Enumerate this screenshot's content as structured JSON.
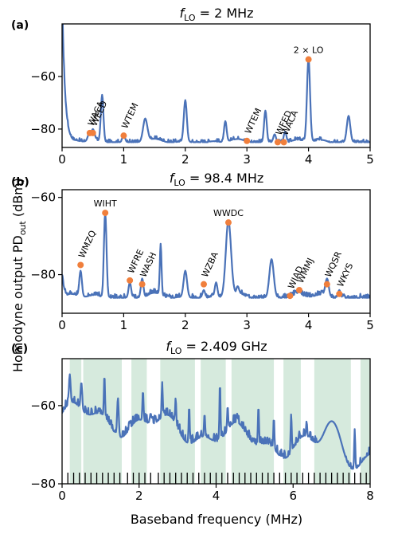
{
  "figure": {
    "ylabel": "Homodyne output PD",
    "ylabel_sub": "out",
    "ylabel_unit": " (dBm)",
    "xlabel": "Baseband frequency (MHz)"
  },
  "colors": {
    "line": "#4a72b8",
    "marker": "#f07f3c",
    "band": "#d6eadd"
  },
  "chart_data": [
    {
      "panel": "(a)",
      "title_italic": "f",
      "title_sub": "LO",
      "title_rest": " = 2 MHz",
      "type": "line",
      "xlim": [
        0,
        5
      ],
      "ylim": [
        -87,
        -40
      ],
      "xticks": [
        0,
        1,
        2,
        3,
        4,
        5
      ],
      "yticks": [
        -80,
        -60
      ],
      "peaks": [
        {
          "x": 0.45,
          "y": -81,
          "w": 0.04
        },
        {
          "x": 0.5,
          "y": -80,
          "w": 0.04
        },
        {
          "x": 0.65,
          "y": -67,
          "w": 0.03
        },
        {
          "x": 1.0,
          "y": -82,
          "w": 0.03
        },
        {
          "x": 1.35,
          "y": -76,
          "w": 0.05
        },
        {
          "x": 2.0,
          "y": -69,
          "w": 0.035
        },
        {
          "x": 2.65,
          "y": -77,
          "w": 0.03
        },
        {
          "x": 3.0,
          "y": -84,
          "w": 0.03
        },
        {
          "x": 3.3,
          "y": -73,
          "w": 0.03
        },
        {
          "x": 3.45,
          "y": -82,
          "w": 0.03
        },
        {
          "x": 3.62,
          "y": -81,
          "w": 0.03
        },
        {
          "x": 4.0,
          "y": -53,
          "w": 0.035
        },
        {
          "x": 4.65,
          "y": -75,
          "w": 0.04
        }
      ],
      "left_rise": {
        "y0": -28,
        "decay": 0.045
      },
      "floor": -85,
      "markers": [
        {
          "x": 0.45,
          "y": -81.5,
          "label": "WACA",
          "rot": -65
        },
        {
          "x": 0.5,
          "y": -81.5,
          "label": "WEED",
          "rot": -65
        },
        {
          "x": 1.0,
          "y": -82.5,
          "label": "WTEM",
          "rot": -65
        },
        {
          "x": 3.0,
          "y": -84.5,
          "label": "WTEM",
          "rot": -65
        },
        {
          "x": 3.5,
          "y": -85,
          "label": "WFED",
          "rot": -65
        },
        {
          "x": 3.6,
          "y": -85,
          "label": "WACA",
          "rot": -65
        },
        {
          "x": 4.0,
          "y": -53.5,
          "label": "2 × LO",
          "rot": 0
        }
      ]
    },
    {
      "panel": "(b)",
      "title_italic": "f",
      "title_sub": "LO",
      "title_rest": " = 98.4 MHz",
      "type": "line",
      "xlim": [
        0,
        5
      ],
      "ylim": [
        -90,
        -58
      ],
      "xticks": [
        0,
        1,
        2,
        3,
        4,
        5
      ],
      "yticks": [
        -80,
        -60
      ],
      "peaks": [
        {
          "x": 0.3,
          "y": -79,
          "w": 0.03
        },
        {
          "x": 0.7,
          "y": -64,
          "w": 0.03
        },
        {
          "x": 1.1,
          "y": -82,
          "w": 0.03
        },
        {
          "x": 1.3,
          "y": -81,
          "w": 0.03
        },
        {
          "x": 1.6,
          "y": -72,
          "w": 0.02
        },
        {
          "x": 2.0,
          "y": -79,
          "w": 0.04
        },
        {
          "x": 2.3,
          "y": -84,
          "w": 0.03
        },
        {
          "x": 2.5,
          "y": -82,
          "w": 0.03
        },
        {
          "x": 2.7,
          "y": -66,
          "w": 0.06
        },
        {
          "x": 2.85,
          "y": -83,
          "w": 0.03
        },
        {
          "x": 3.4,
          "y": -76,
          "w": 0.05
        },
        {
          "x": 3.7,
          "y": -85,
          "w": 0.03
        },
        {
          "x": 3.85,
          "y": -84,
          "w": 0.03
        },
        {
          "x": 4.05,
          "y": -88,
          "w": 0.02
        },
        {
          "x": 4.3,
          "y": -81,
          "w": 0.04
        },
        {
          "x": 4.5,
          "y": -84,
          "w": 0.03
        }
      ],
      "left_rise": {
        "y0": -80,
        "decay": 0.04
      },
      "floor": -86,
      "markers": [
        {
          "x": 0.3,
          "y": -77.5,
          "label": "WMZQ",
          "rot": -65
        },
        {
          "x": 0.7,
          "y": -64,
          "label": "WIHT",
          "rot": 0
        },
        {
          "x": 1.1,
          "y": -81.5,
          "label": "WFRE",
          "rot": -65
        },
        {
          "x": 1.3,
          "y": -82.5,
          "label": "WASH",
          "rot": -65
        },
        {
          "x": 2.3,
          "y": -82.5,
          "label": "WZBA",
          "rot": -65
        },
        {
          "x": 2.7,
          "y": -66.5,
          "label": "WWDC",
          "rot": 0
        },
        {
          "x": 3.7,
          "y": -85.5,
          "label": "WIAD",
          "rot": -65
        },
        {
          "x": 3.85,
          "y": -84,
          "label": "WMMJ",
          "rot": -65
        },
        {
          "x": 4.3,
          "y": -82.5,
          "label": "WQSR",
          "rot": -65
        },
        {
          "x": 4.5,
          "y": -85,
          "label": "WKYS",
          "rot": -65
        }
      ]
    },
    {
      "panel": "(c)",
      "title_italic": "f",
      "title_sub": "LO",
      "title_rest": " = 2.409 GHz",
      "type": "line",
      "xlim": [
        0,
        8
      ],
      "ylim": [
        -80,
        -48
      ],
      "xticks": [
        0,
        2,
        4,
        6,
        8
      ],
      "yticks": [
        -80,
        -60
      ],
      "bands": [
        [
          0.2,
          0.5
        ],
        [
          0.55,
          1.55
        ],
        [
          1.8,
          2.2
        ],
        [
          2.55,
          3.45
        ],
        [
          3.6,
          4.25
        ],
        [
          4.4,
          5.5
        ],
        [
          5.75,
          6.2
        ],
        [
          6.55,
          7.5
        ],
        [
          7.75,
          8.0
        ]
      ],
      "tick_marks": [
        0.15,
        0.3,
        0.45,
        0.6,
        0.75,
        0.9,
        1.05,
        1.2,
        1.35,
        1.5,
        1.7,
        1.85,
        2.0,
        2.15,
        2.3,
        2.5,
        2.65,
        2.8,
        2.95,
        3.1,
        3.25,
        3.4,
        3.55,
        3.7,
        3.85,
        4.0,
        4.15,
        4.3,
        4.45,
        4.6,
        4.75,
        4.9,
        5.05,
        5.2,
        5.35,
        5.5,
        5.65,
        5.8,
        5.95,
        6.1,
        6.25,
        6.4,
        6.55,
        6.7,
        6.85,
        7.0,
        7.15,
        7.3,
        7.45,
        7.6,
        7.75,
        7.9
      ],
      "peaks": [
        {
          "x": 0.2,
          "y": -52,
          "w": 0.03
        },
        {
          "x": 0.5,
          "y": -54,
          "w": 0.03
        },
        {
          "x": 0.85,
          "y": -62,
          "w": 0.03
        },
        {
          "x": 1.1,
          "y": -52,
          "w": 0.02
        },
        {
          "x": 1.45,
          "y": -58,
          "w": 0.03
        },
        {
          "x": 1.75,
          "y": -64,
          "w": 0.02
        },
        {
          "x": 2.1,
          "y": -56,
          "w": 0.02
        },
        {
          "x": 2.3,
          "y": -62,
          "w": 0.03
        },
        {
          "x": 2.6,
          "y": -54,
          "w": 0.02
        },
        {
          "x": 2.95,
          "y": -58,
          "w": 0.02
        },
        {
          "x": 3.3,
          "y": -60,
          "w": 0.02
        },
        {
          "x": 3.7,
          "y": -62,
          "w": 0.02
        },
        {
          "x": 4.1,
          "y": -54,
          "w": 0.02
        },
        {
          "x": 4.3,
          "y": -60,
          "w": 0.02
        },
        {
          "x": 4.55,
          "y": -62,
          "w": 0.02
        },
        {
          "x": 5.1,
          "y": -60,
          "w": 0.02
        },
        {
          "x": 5.5,
          "y": -63,
          "w": 0.02
        },
        {
          "x": 5.95,
          "y": -62,
          "w": 0.02
        },
        {
          "x": 6.35,
          "y": -64,
          "w": 0.02
        },
        {
          "x": 7.0,
          "y": -64,
          "w": 0.25
        },
        {
          "x": 7.6,
          "y": -66,
          "w": 0.02
        }
      ],
      "floor_start": -62,
      "floor_end": -73,
      "markers": []
    }
  ]
}
